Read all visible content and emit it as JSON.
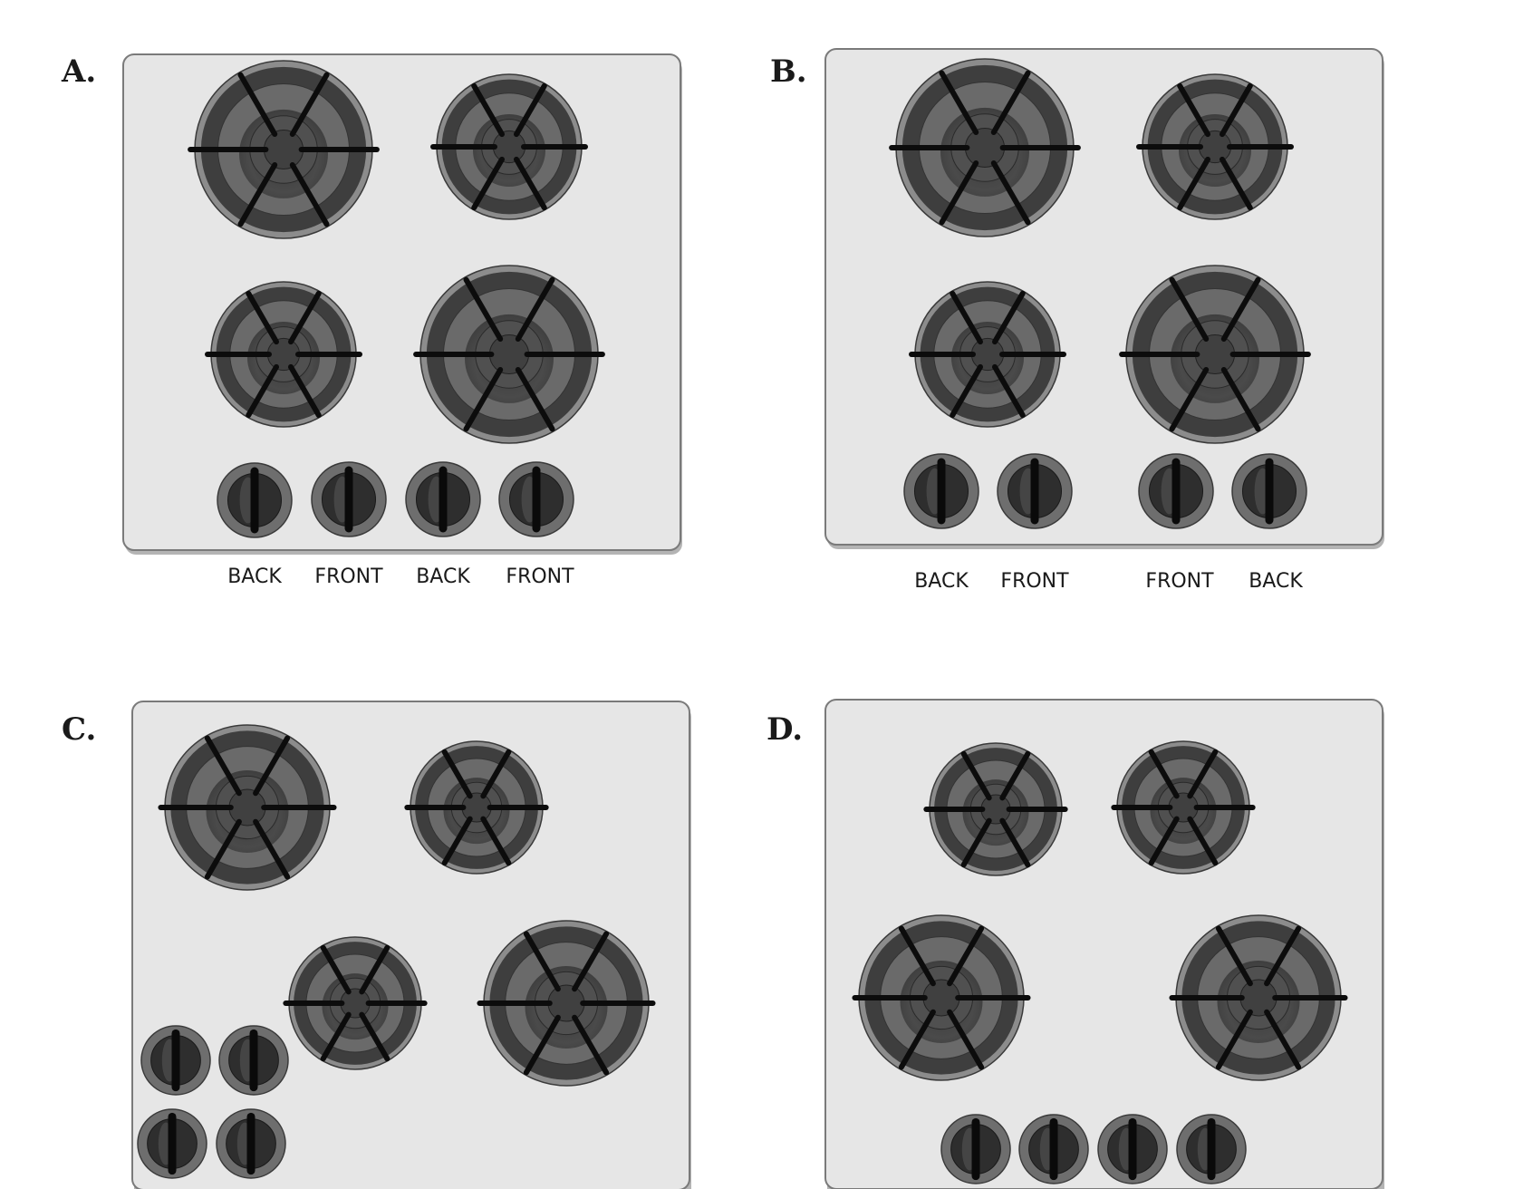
{
  "panels": [
    {
      "id": "A",
      "letter": "A.",
      "knob_labels": [
        "BACK",
        "FRONT",
        "BACK",
        "FRONT"
      ]
    },
    {
      "id": "B",
      "letter": "B.",
      "knob_labels": [
        "BACK",
        "FRONT",
        "FRONT",
        "BACK"
      ]
    },
    {
      "id": "C",
      "letter": "C.",
      "knob_labels": []
    },
    {
      "id": "D",
      "letter": "D.",
      "knob_labels": []
    }
  ],
  "colors": {
    "cooktop": "#e6e6e6",
    "cooktop_border": "#7a7a7a",
    "cooktop_shadow": "#b4b4b4",
    "burner_outer": "#8c8c8c",
    "burner_ring": "#3e3e3e",
    "burner_mid": "#6a6a6a",
    "burner_inner": "#505050",
    "burner_cap": "#404040",
    "grate": "#0c0c0c",
    "knob_outer": "#6e6e6e",
    "knob_inner": "#2e2e2e",
    "knob_bar": "#0a0a0a"
  }
}
